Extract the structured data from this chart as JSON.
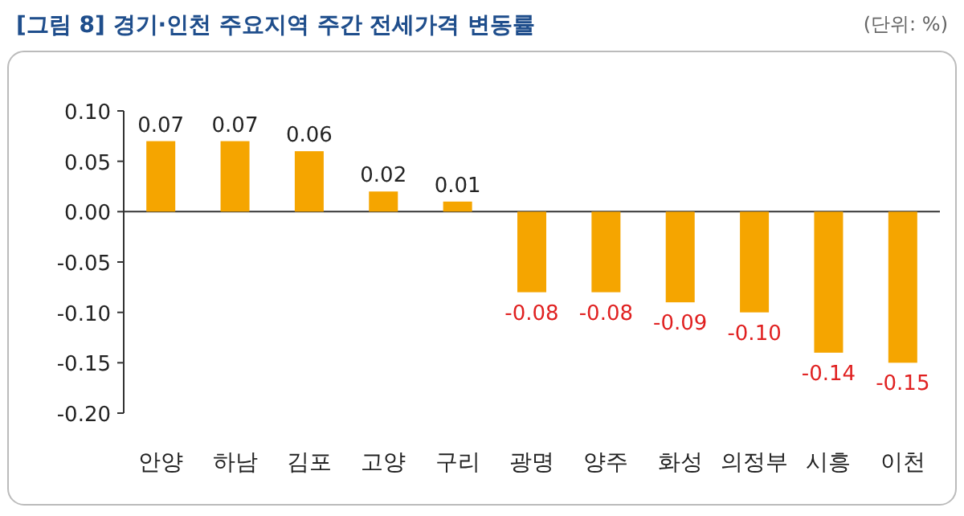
{
  "chart_data": {
    "type": "bar",
    "title": "[그림 8]  경기·인천 주요지역 주간 전세가격 변동률",
    "annotations": [
      "(단위: %)"
    ],
    "categories": [
      "안양",
      "하남",
      "김포",
      "고양",
      "구리",
      "광명",
      "양주",
      "화성",
      "의정부",
      "시흥",
      "이천"
    ],
    "values": [
      0.07,
      0.07,
      0.06,
      0.02,
      0.01,
      -0.08,
      -0.08,
      -0.09,
      -0.1,
      -0.14,
      -0.15
    ],
    "value_labels": [
      "0.07",
      "0.07",
      "0.06",
      "0.02",
      "0.01",
      "-0.08",
      "-0.08",
      "-0.09",
      "-0.10",
      "-0.14",
      "-0.15"
    ],
    "color": "#f5a500",
    "ylim": [
      -0.2,
      0.1
    ],
    "yticks": [
      {
        "value": 0.1,
        "label": "0.10"
      },
      {
        "value": 0.05,
        "label": "0.05"
      },
      {
        "value": 0,
        "label": "0.00"
      },
      {
        "value": -0.05,
        "label": "-0.05"
      },
      {
        "value": -0.1,
        "label": "-0.10"
      },
      {
        "value": -0.15,
        "label": "-0.15"
      },
      {
        "value": -0.2,
        "label": "-0.20"
      }
    ],
    "data_labels": true
  }
}
